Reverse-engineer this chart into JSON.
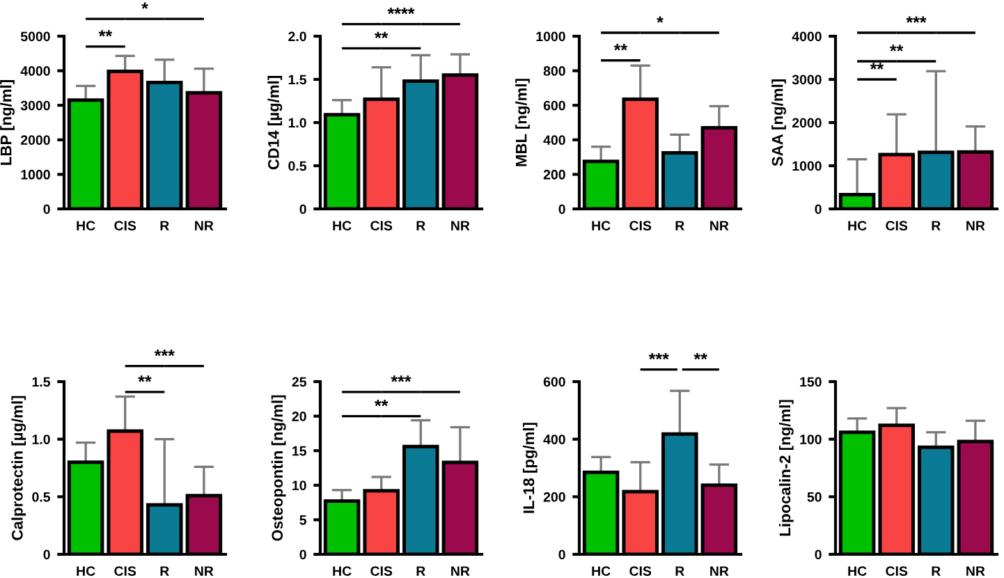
{
  "chart_data": [
    {
      "type": "bar",
      "ylabel": "LBP [ng/ml]",
      "categories": [
        "HC",
        "CIS",
        "R",
        "NR"
      ],
      "values": [
        3150,
        3980,
        3660,
        3360
      ],
      "errors": [
        [
          3150,
          3560
        ],
        [
          3980,
          4430
        ],
        [
          3660,
          4320
        ],
        [
          3360,
          4060
        ]
      ],
      "colors": [
        "#00c000",
        "#f94444",
        "#0b7b95",
        "#9b0a4d"
      ],
      "ylim": [
        0,
        5000
      ],
      "yticks": [
        0,
        1000,
        2000,
        3000,
        4000,
        5000
      ],
      "grid": false,
      "legend": false,
      "annotations": [
        "**",
        "*"
      ]
    },
    {
      "type": "bar",
      "ylabel": "CD14 [µg/ml]",
      "categories": [
        "HC",
        "CIS",
        "R",
        "NR"
      ],
      "values": [
        1.09,
        1.27,
        1.48,
        1.55
      ],
      "errors": [
        [
          1.09,
          1.26
        ],
        [
          1.27,
          1.64
        ],
        [
          1.48,
          1.78
        ],
        [
          1.55,
          1.79
        ]
      ],
      "colors": [
        "#00c000",
        "#f94444",
        "#0b7b95",
        "#9b0a4d"
      ],
      "ylim": [
        0,
        2.0
      ],
      "yticks": [
        {
          "value": 0,
          "label": "0"
        },
        {
          "value": 0.5,
          "label": "0.5"
        },
        {
          "value": 1.0,
          "label": "1.0"
        },
        {
          "value": 1.5,
          "label": "1.5"
        },
        {
          "value": 2.0,
          "label": "2.0"
        }
      ],
      "grid": false,
      "legend": false,
      "annotations": [
        "**",
        "****"
      ]
    },
    {
      "type": "bar",
      "ylabel": "MBL [ng/ml]",
      "categories": [
        "HC",
        "CIS",
        "R",
        "NR"
      ],
      "values": [
        275,
        635,
        325,
        470
      ],
      "errors": [
        [
          275,
          360
        ],
        [
          635,
          830
        ],
        [
          325,
          430
        ],
        [
          470,
          595
        ]
      ],
      "colors": [
        "#00c000",
        "#f94444",
        "#0b7b95",
        "#9b0a4d"
      ],
      "ylim": [
        0,
        1000
      ],
      "yticks": [
        0,
        200,
        400,
        600,
        800,
        1000
      ],
      "grid": false,
      "legend": false,
      "annotations": [
        "**",
        "*"
      ]
    },
    {
      "type": "bar",
      "ylabel": "SAA [ng/ml]",
      "categories": [
        "HC",
        "CIS",
        "R",
        "NR"
      ],
      "values": [
        330,
        1260,
        1310,
        1320
      ],
      "errors": [
        [
          330,
          1150
        ],
        [
          1260,
          2190
        ],
        [
          1310,
          3190
        ],
        [
          1320,
          1910
        ]
      ],
      "colors": [
        "#00c000",
        "#f94444",
        "#0b7b95",
        "#9b0a4d"
      ],
      "ylim": [
        0,
        4000
      ],
      "yticks": [
        0,
        1000,
        2000,
        3000,
        4000
      ],
      "grid": false,
      "legend": false,
      "annotations": [
        "**",
        "**",
        "***"
      ]
    },
    {
      "type": "bar",
      "ylabel": "Calprotectin [µg/ml]",
      "categories": [
        "HC",
        "CIS",
        "R",
        "NR"
      ],
      "values": [
        0.8,
        1.07,
        0.43,
        0.51
      ],
      "errors": [
        [
          0.8,
          0.97
        ],
        [
          1.07,
          1.37
        ],
        [
          0.43,
          1.0
        ],
        [
          0.51,
          0.76
        ]
      ],
      "colors": [
        "#00c000",
        "#f94444",
        "#0b7b95",
        "#9b0a4d"
      ],
      "ylim": [
        0,
        1.5
      ],
      "yticks": [
        {
          "value": 0,
          "label": "0"
        },
        {
          "value": 0.5,
          "label": "0.5"
        },
        {
          "value": 1.0,
          "label": "1.0"
        },
        {
          "value": 1.5,
          "label": "1.5"
        }
      ],
      "grid": false,
      "legend": false,
      "annotations": [
        "**",
        "***"
      ]
    },
    {
      "type": "bar",
      "ylabel": "Osteopontin [ng/ml]",
      "categories": [
        "HC",
        "CIS",
        "R",
        "NR"
      ],
      "values": [
        7.7,
        9.2,
        15.6,
        13.3
      ],
      "errors": [
        [
          7.7,
          9.3
        ],
        [
          9.2,
          11.2
        ],
        [
          15.6,
          19.4
        ],
        [
          13.3,
          18.4
        ]
      ],
      "colors": [
        "#00c000",
        "#f94444",
        "#0b7b95",
        "#9b0a4d"
      ],
      "ylim": [
        0,
        25
      ],
      "yticks": [
        0,
        5,
        10,
        15,
        20,
        25
      ],
      "grid": false,
      "legend": false,
      "annotations": [
        "**",
        "***"
      ]
    },
    {
      "type": "bar",
      "ylabel": "IL-18 [pg/ml]",
      "categories": [
        "HC",
        "CIS",
        "R",
        "NR"
      ],
      "values": [
        285,
        218,
        418,
        240
      ],
      "errors": [
        [
          285,
          338
        ],
        [
          218,
          320
        ],
        [
          418,
          568
        ],
        [
          240,
          312
        ]
      ],
      "colors": [
        "#00c000",
        "#f94444",
        "#0b7b95",
        "#9b0a4d"
      ],
      "ylim": [
        0,
        600
      ],
      "yticks": [
        0,
        200,
        400,
        600
      ],
      "grid": false,
      "legend": false,
      "annotations": [
        "***",
        "**"
      ]
    },
    {
      "type": "bar",
      "ylabel": "Lipocalin-2 [ng/ml]",
      "categories": [
        "HC",
        "CIS",
        "R",
        "NR"
      ],
      "values": [
        106,
        112,
        93,
        98
      ],
      "errors": [
        [
          106,
          118
        ],
        [
          112,
          127
        ],
        [
          93,
          106
        ],
        [
          98,
          116
        ]
      ],
      "colors": [
        "#00c000",
        "#f94444",
        "#0b7b95",
        "#9b0a4d"
      ],
      "ylim": [
        0,
        150
      ],
      "yticks": [
        0,
        50,
        100,
        150
      ],
      "grid": false,
      "legend": false
    }
  ]
}
